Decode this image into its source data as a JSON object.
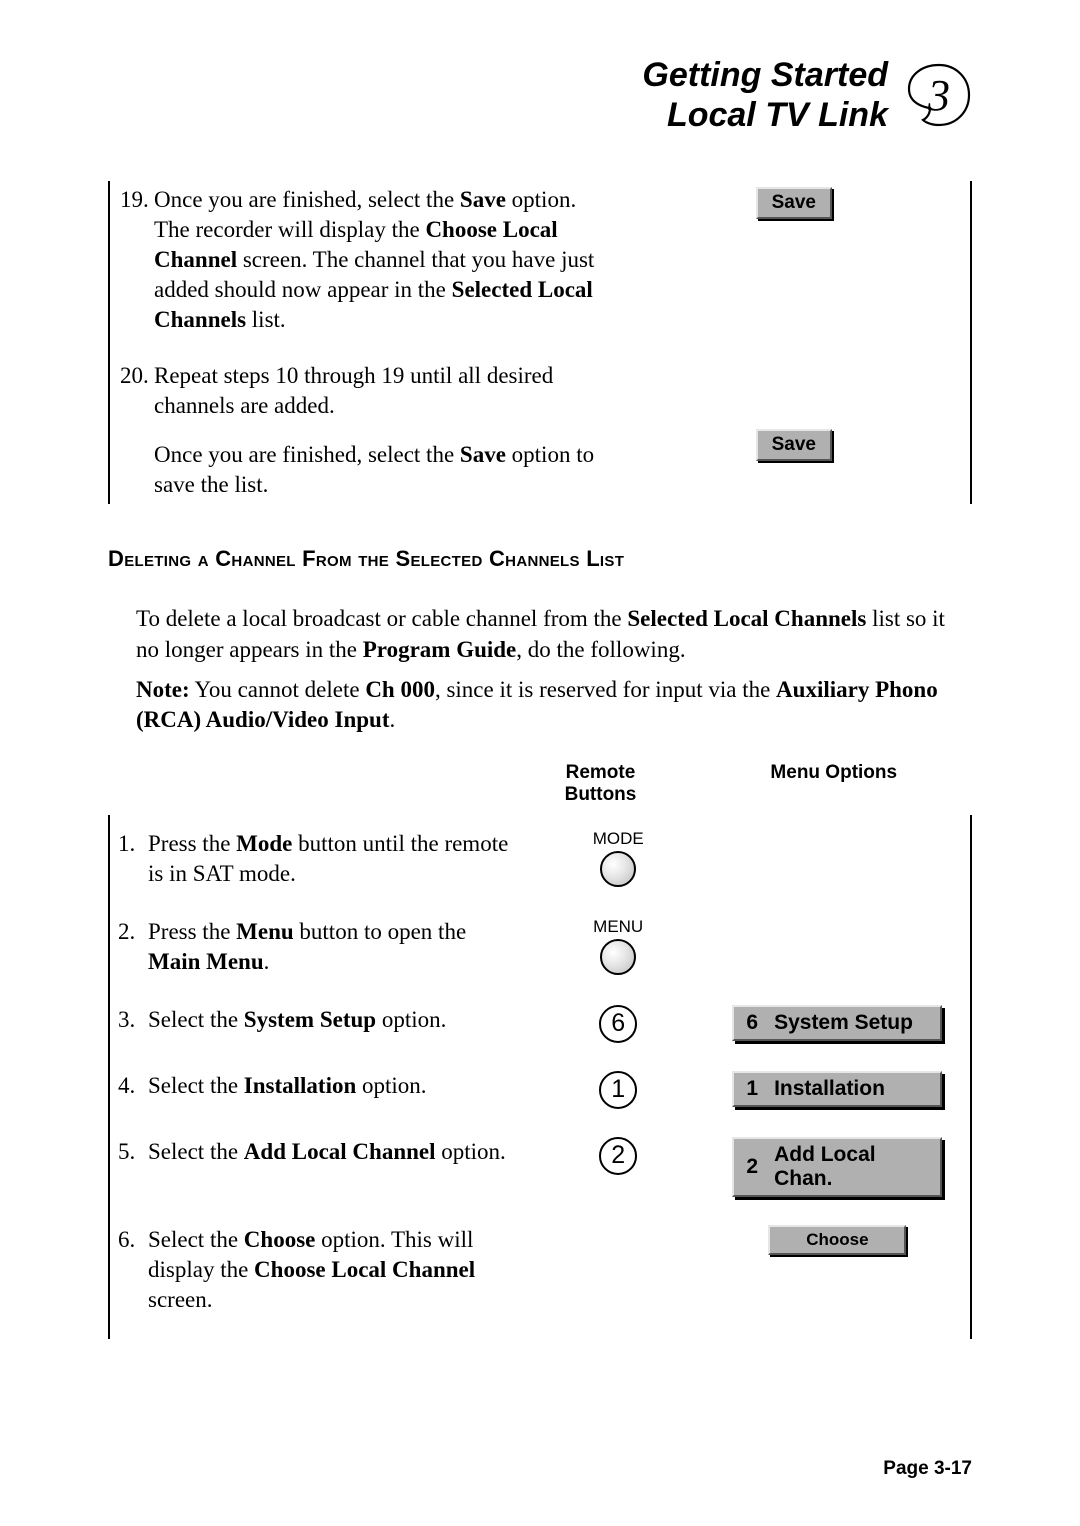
{
  "header": {
    "line1": "Getting Started",
    "line2": "Local TV Link",
    "chapter_number": "3"
  },
  "top_section": {
    "steps": [
      {
        "number": "19.",
        "segments": [
          {
            "t": "Once you are finished, select the ",
            "b": false
          },
          {
            "t": "Save",
            "b": true
          },
          {
            "t": " option.  The recorder will display the ",
            "b": false
          },
          {
            "t": "Choose Local Channel",
            "b": true
          },
          {
            "t": " screen.  The channel that you have just added should now appear in the ",
            "b": false
          },
          {
            "t": "Selected Local Channels",
            "b": true
          },
          {
            "t": " list.",
            "b": false
          }
        ]
      },
      {
        "number": "20.",
        "segments": [
          {
            "t": "Repeat steps 10 through 19 until all desired channels are added.",
            "b": false
          }
        ],
        "after_segments": [
          {
            "t": "Once you are finished, select the ",
            "b": false
          },
          {
            "t": "Save",
            "b": true
          },
          {
            "t": " option to save the list.",
            "b": false
          }
        ]
      }
    ],
    "right_buttons": [
      {
        "label": "Save"
      },
      {
        "label": "Save"
      }
    ]
  },
  "section_heading": "Deleting a Channel From the Selected Channels List",
  "intro_segments": [
    {
      "t": "To delete a local broadcast or cable channel from the ",
      "b": false
    },
    {
      "t": "Selected Local Channels",
      "b": true
    },
    {
      "t": " list so it no longer appears in the ",
      "b": false
    },
    {
      "t": "Program Guide",
      "b": true
    },
    {
      "t": ", do the following.",
      "b": false
    }
  ],
  "note_segments": [
    {
      "t": "Note:",
      "b": true
    },
    {
      "t": "  You cannot delete ",
      "b": false
    },
    {
      "t": "Ch 000",
      "b": true
    },
    {
      "t": ", since it is reserved for input via the ",
      "b": false
    },
    {
      "t": "Auxiliary Phono (RCA) Audio/Video Input",
      "b": true
    },
    {
      "t": ".",
      "b": false
    }
  ],
  "instr_headers": {
    "c2_line1": "Remote",
    "c2_line2": "Buttons",
    "c3": "Menu Options"
  },
  "instr_rows": [
    {
      "num": "1.",
      "segments": [
        {
          "t": "Press the ",
          "b": false
        },
        {
          "t": "Mode",
          "b": true
        },
        {
          "t": " button until the remote is in SAT mode.",
          "b": false
        }
      ],
      "remote": {
        "type": "labeled-round",
        "label": "MODE"
      },
      "menu": null
    },
    {
      "num": "2.",
      "segments": [
        {
          "t": "Press the ",
          "b": false
        },
        {
          "t": "Menu",
          "b": true
        },
        {
          "t": " button to open the ",
          "b": false
        },
        {
          "t": "Main Menu",
          "b": true
        },
        {
          "t": ".",
          "b": false
        }
      ],
      "remote": {
        "type": "labeled-round",
        "label": "MENU"
      },
      "menu": null
    },
    {
      "num": "3.",
      "segments": [
        {
          "t": "Select the ",
          "b": false
        },
        {
          "t": "System Setup",
          "b": true
        },
        {
          "t": " option.",
          "b": false
        }
      ],
      "remote": {
        "type": "circled-num",
        "label": "6"
      },
      "menu": {
        "num": "6",
        "label": "System Setup"
      }
    },
    {
      "num": "4.",
      "segments": [
        {
          "t": "Select the ",
          "b": false
        },
        {
          "t": "Installation",
          "b": true
        },
        {
          "t": " option.",
          "b": false
        }
      ],
      "remote": {
        "type": "circled-num",
        "label": "1"
      },
      "menu": {
        "num": "1",
        "label": "Installation"
      }
    },
    {
      "num": "5.",
      "segments": [
        {
          "t": "Select the ",
          "b": false
        },
        {
          "t": "Add Local Channel",
          "b": true
        },
        {
          "t": " option.",
          "b": false
        }
      ],
      "remote": {
        "type": "circled-num",
        "label": "2"
      },
      "menu": {
        "num": "2",
        "label": "Add Local Chan."
      }
    },
    {
      "num": "6.",
      "segments": [
        {
          "t": "Select the ",
          "b": false
        },
        {
          "t": "Choose",
          "b": true
        },
        {
          "t": " option.  This will display the ",
          "b": false
        },
        {
          "t": "Choose Local Channel",
          "b": true
        },
        {
          "t": " screen.",
          "b": false
        }
      ],
      "remote": null,
      "menu": {
        "center": true,
        "label": "Choose",
        "small": true
      }
    }
  ],
  "footer": "Page 3-17",
  "colors": {
    "button_bg": "#b0b0b0",
    "button_hl": "#e6e6e6",
    "button_sh": "#555555",
    "text": "#000000",
    "bg": "#ffffff"
  }
}
